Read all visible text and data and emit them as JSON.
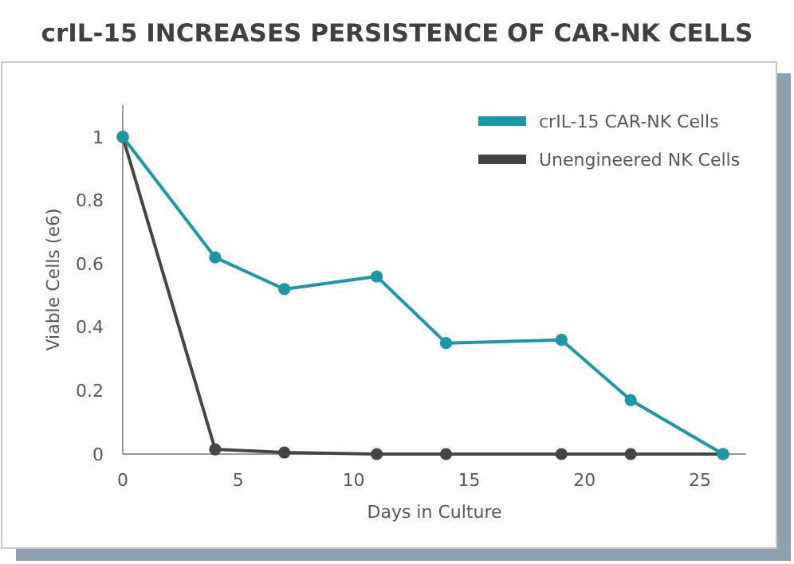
{
  "chart_data": {
    "type": "line",
    "title": "crIL-15 INCREASES PERSISTENCE OF CAR-NK CELLS",
    "xlabel": "Days in Culture",
    "ylabel": "Viable Cells (e6)",
    "x": [
      0,
      4,
      7,
      11,
      14,
      19,
      22,
      26
    ],
    "series": [
      {
        "name": "crIL-15 CAR-NK Cells",
        "color": "#1b98a8",
        "values": [
          1,
          0.62,
          0.52,
          0.56,
          0.35,
          0.36,
          0.17,
          0
        ]
      },
      {
        "name": "Unengineered NK Cells",
        "color": "#454545",
        "values": [
          1,
          0.015,
          0.005,
          0,
          0,
          0,
          0,
          0
        ]
      }
    ],
    "xlim": [
      0,
      27
    ],
    "xticks": [
      0,
      5,
      10,
      15,
      20,
      25
    ],
    "ylim": [
      0,
      1.1
    ],
    "yticks": [
      0,
      0.2,
      0.4,
      0.6,
      0.8,
      1
    ],
    "grid": false,
    "legend": "top right",
    "marker": "circle",
    "line_style": "solid"
  }
}
